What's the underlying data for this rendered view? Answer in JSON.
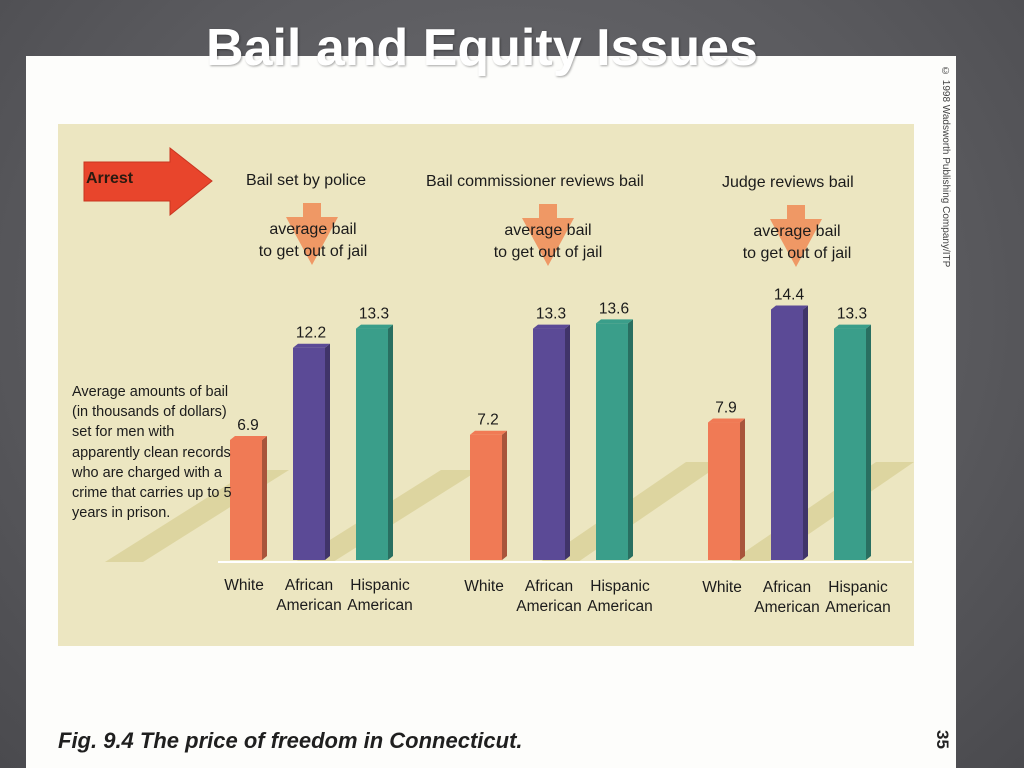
{
  "slide": {
    "title": "Bail and Equity Issues"
  },
  "figure": {
    "caption": "Fig. 9.4  The price of freedom in Connecticut.",
    "copyright": "© 1998 Wadsworth Publishing Company/ITP",
    "page_number": "35",
    "arrest_label": "Arrest",
    "side_note": "Average amounts of bail (in thousands of dollars) set for men with apparently clean records who are charged with a crime that carries up to 5 years in prison.",
    "average_line1": "average bail",
    "average_line2": "to get out of jail"
  },
  "colors": {
    "white": "#f07a55",
    "african_american": "#5b4a96",
    "hispanic_american": "#3a9e8a",
    "arrow": "#e8452c",
    "panel": "#ece6c1"
  },
  "chart_data": {
    "type": "bar",
    "groups": [
      {
        "stage": "Bail set by police",
        "values": [
          6.9,
          12.2,
          13.3
        ]
      },
      {
        "stage": "Bail commissioner reviews bail",
        "values": [
          7.2,
          13.3,
          13.6
        ]
      },
      {
        "stage": "Judge reviews bail",
        "values": [
          7.9,
          14.4,
          13.3
        ]
      }
    ],
    "categories": [
      [
        "White"
      ],
      [
        "African",
        "American"
      ],
      [
        "Hispanic",
        "American"
      ]
    ],
    "ylim": [
      0,
      15
    ]
  }
}
